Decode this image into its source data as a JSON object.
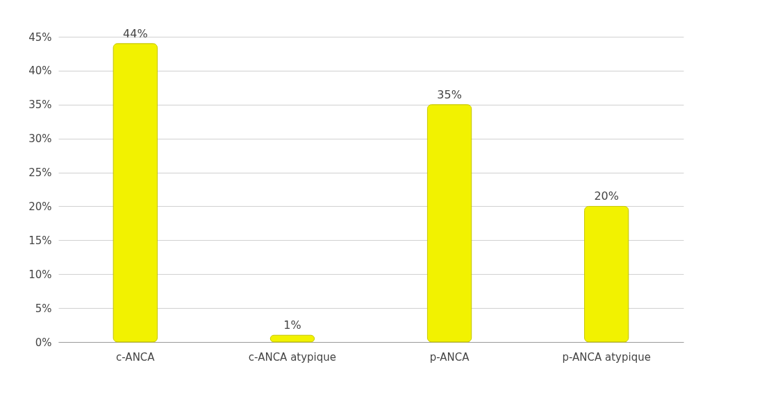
{
  "chart_data": {
    "type": "bar",
    "categories": [
      "c-ANCA",
      "c-ANCA atypique",
      "p-ANCA",
      "p-ANCA atypique"
    ],
    "values": [
      44,
      1,
      35,
      20
    ],
    "color": "#f2f200",
    "value_labels": [
      "44%",
      "1%",
      "35%",
      "20%"
    ],
    "ylim": [
      0,
      45
    ],
    "yticks": [
      {
        "value": 0,
        "label": "0%"
      },
      {
        "value": 5,
        "label": "5%"
      },
      {
        "value": 10,
        "label": "10%"
      },
      {
        "value": 15,
        "label": "15%"
      },
      {
        "value": 20,
        "label": "20%"
      },
      {
        "value": 25,
        "label": "25%"
      },
      {
        "value": 30,
        "label": "30%"
      },
      {
        "value": 35,
        "label": "35%"
      },
      {
        "value": 40,
        "label": "40%"
      },
      {
        "value": 45,
        "label": "45%"
      }
    ],
    "grid": "y"
  }
}
